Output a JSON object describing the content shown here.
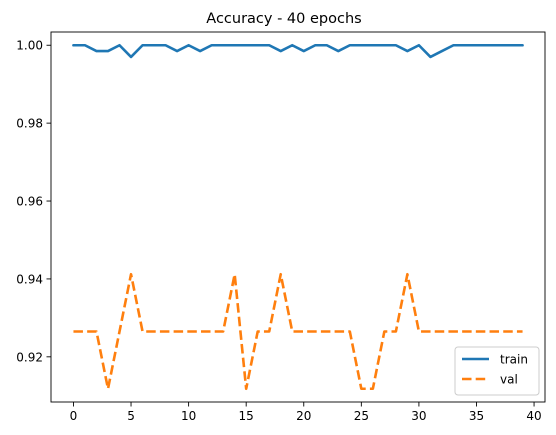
{
  "chart_data": {
    "type": "line",
    "title": "Accuracy - 40 epochs",
    "xlabel": "",
    "ylabel": "",
    "xlim": [
      -1.95,
      40.95
    ],
    "ylim": [
      0.9084,
      1.0034
    ],
    "xticks": [
      0,
      5,
      10,
      15,
      20,
      25,
      30,
      35,
      40
    ],
    "yticks": [
      0.92,
      0.94,
      0.96,
      0.98,
      1.0
    ],
    "ytick_labels": [
      "0.92",
      "0.94",
      "0.96",
      "0.98",
      "1.00"
    ],
    "grid": false,
    "legend_position": "lower right",
    "x": [
      0,
      1,
      2,
      3,
      4,
      5,
      6,
      7,
      8,
      9,
      10,
      11,
      12,
      13,
      14,
      15,
      16,
      17,
      18,
      19,
      20,
      21,
      22,
      23,
      24,
      25,
      26,
      27,
      28,
      29,
      30,
      31,
      32,
      33,
      34,
      35,
      36,
      37,
      38,
      39
    ],
    "series": [
      {
        "name": "train",
        "color": "#1f77b4",
        "style": "solid",
        "values": [
          1.0,
          1.0,
          0.9985,
          0.9985,
          1.0,
          0.997,
          1.0,
          1.0,
          1.0,
          0.9985,
          1.0,
          0.9985,
          1.0,
          1.0,
          1.0,
          1.0,
          1.0,
          1.0,
          0.9985,
          1.0,
          0.9985,
          1.0,
          1.0,
          0.9985,
          1.0,
          1.0,
          1.0,
          1.0,
          1.0,
          0.9985,
          1.0,
          0.997,
          0.9985,
          1.0,
          1.0,
          1.0,
          1.0,
          1.0,
          1.0,
          1.0
        ]
      },
      {
        "name": "val",
        "color": "#ff7f0e",
        "style": "dashed",
        "values": [
          0.9265,
          0.9265,
          0.9265,
          0.9118,
          0.9265,
          0.9412,
          0.9265,
          0.9265,
          0.9265,
          0.9265,
          0.9265,
          0.9265,
          0.9265,
          0.9265,
          0.9412,
          0.9118,
          0.9265,
          0.9265,
          0.9412,
          0.9265,
          0.9265,
          0.9265,
          0.9265,
          0.9265,
          0.9265,
          0.9118,
          0.9118,
          0.9265,
          0.9265,
          0.9412,
          0.9265,
          0.9265,
          0.9265,
          0.9265,
          0.9265,
          0.9265,
          0.9265,
          0.9265,
          0.9265,
          0.9265
        ]
      }
    ]
  }
}
